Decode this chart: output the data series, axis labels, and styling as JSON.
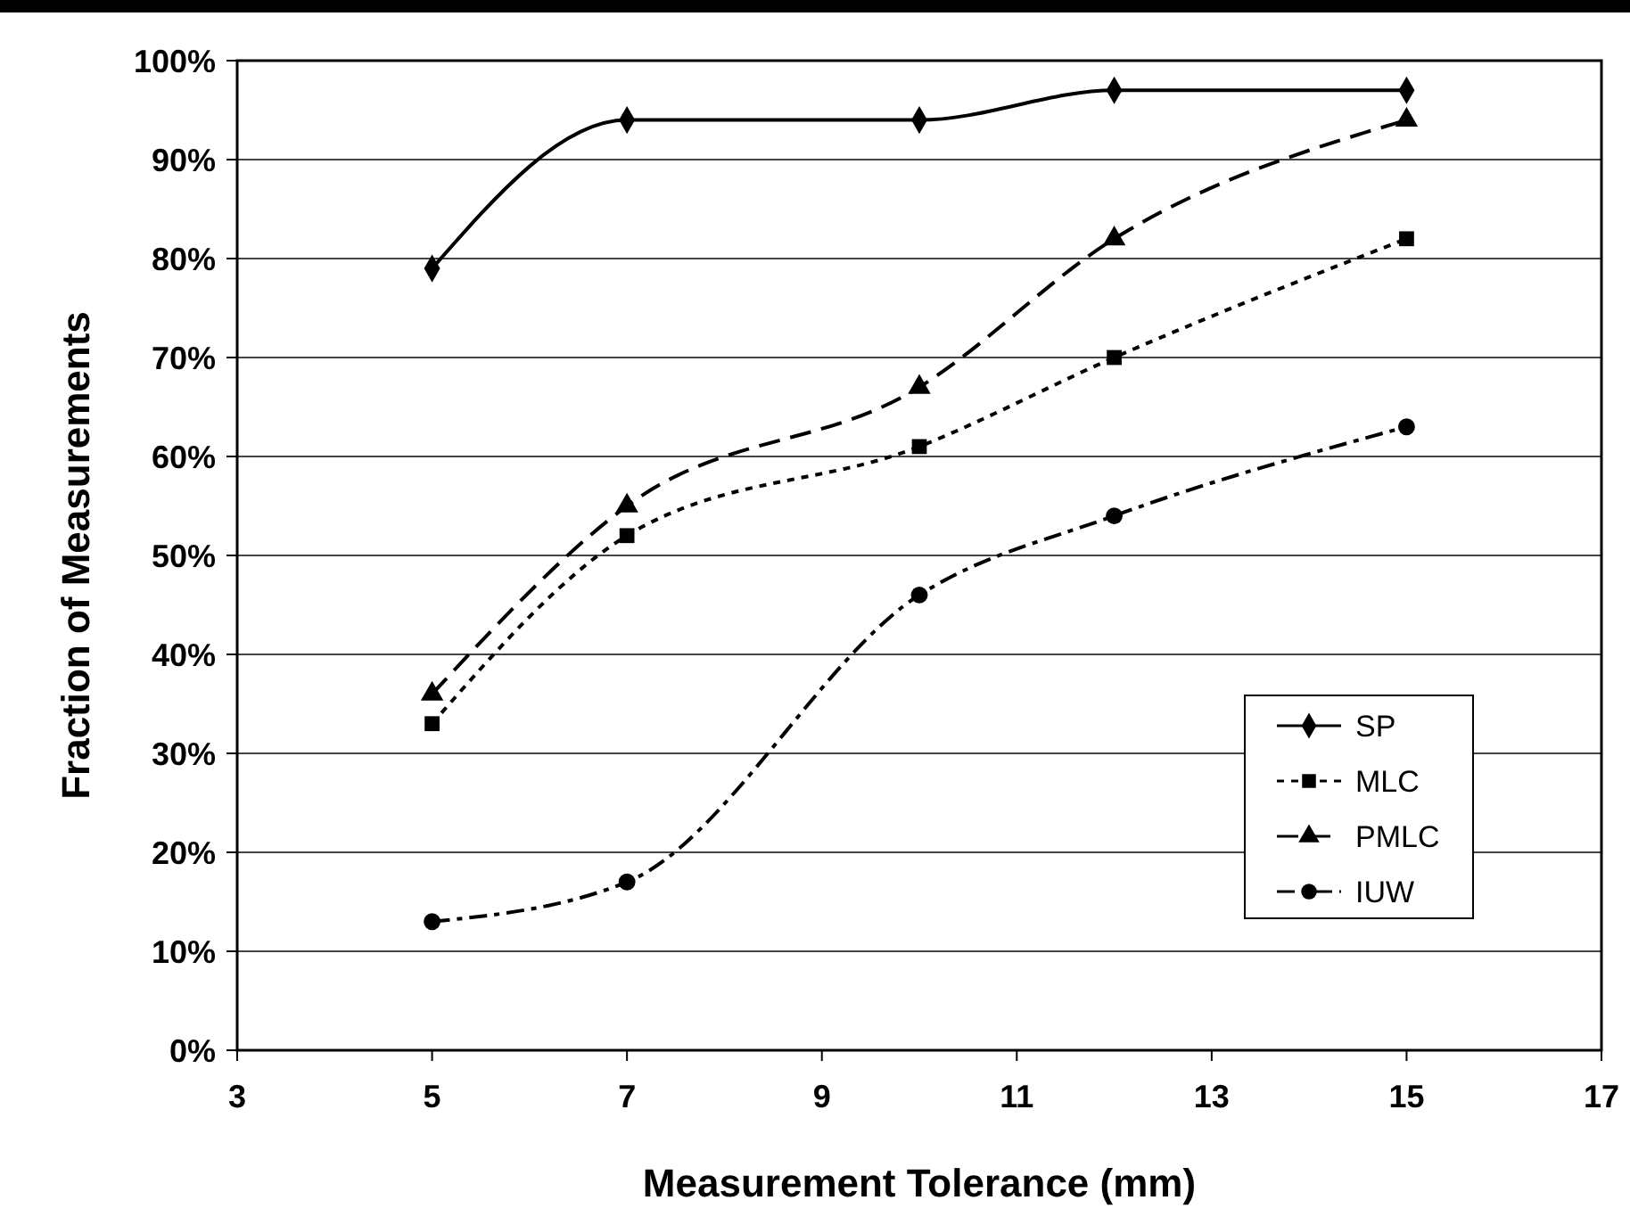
{
  "chart_data": {
    "type": "line",
    "xlabel": "Measurement Tolerance (mm)",
    "ylabel": "Fraction of Measurements",
    "x": [
      5,
      7,
      10,
      12,
      15
    ],
    "xlim": [
      3,
      17
    ],
    "xticks": [
      3,
      5,
      7,
      9,
      11,
      13,
      15,
      17
    ],
    "ylim": [
      0,
      100
    ],
    "yticks": [
      {
        "value": 0,
        "label": "0%"
      },
      {
        "value": 10,
        "label": "10%"
      },
      {
        "value": 20,
        "label": "20%"
      },
      {
        "value": 30,
        "label": "30%"
      },
      {
        "value": 40,
        "label": "40%"
      },
      {
        "value": 50,
        "label": "50%"
      },
      {
        "value": 60,
        "label": "60%"
      },
      {
        "value": 70,
        "label": "70%"
      },
      {
        "value": 80,
        "label": "80%"
      },
      {
        "value": 90,
        "label": "90%"
      },
      {
        "value": 100,
        "label": "100%"
      }
    ],
    "grid": "y",
    "legend": "right",
    "series": [
      {
        "name": "SP",
        "color": "#000000",
        "marker": "diamond",
        "line_style": "solid",
        "values": [
          79,
          94,
          94,
          97,
          97
        ]
      },
      {
        "name": "MLC",
        "color": "#000000",
        "marker": "square",
        "line_style": "dotted",
        "values": [
          33,
          52,
          61,
          70,
          82
        ]
      },
      {
        "name": "PMLC",
        "color": "#000000",
        "marker": "triangle",
        "line_style": "dashed",
        "values": [
          36,
          55,
          67,
          82,
          94
        ]
      },
      {
        "name": "IUW",
        "color": "#000000",
        "marker": "circle",
        "line_style": "dashdot",
        "values": [
          13,
          17,
          46,
          54,
          63
        ]
      }
    ]
  }
}
